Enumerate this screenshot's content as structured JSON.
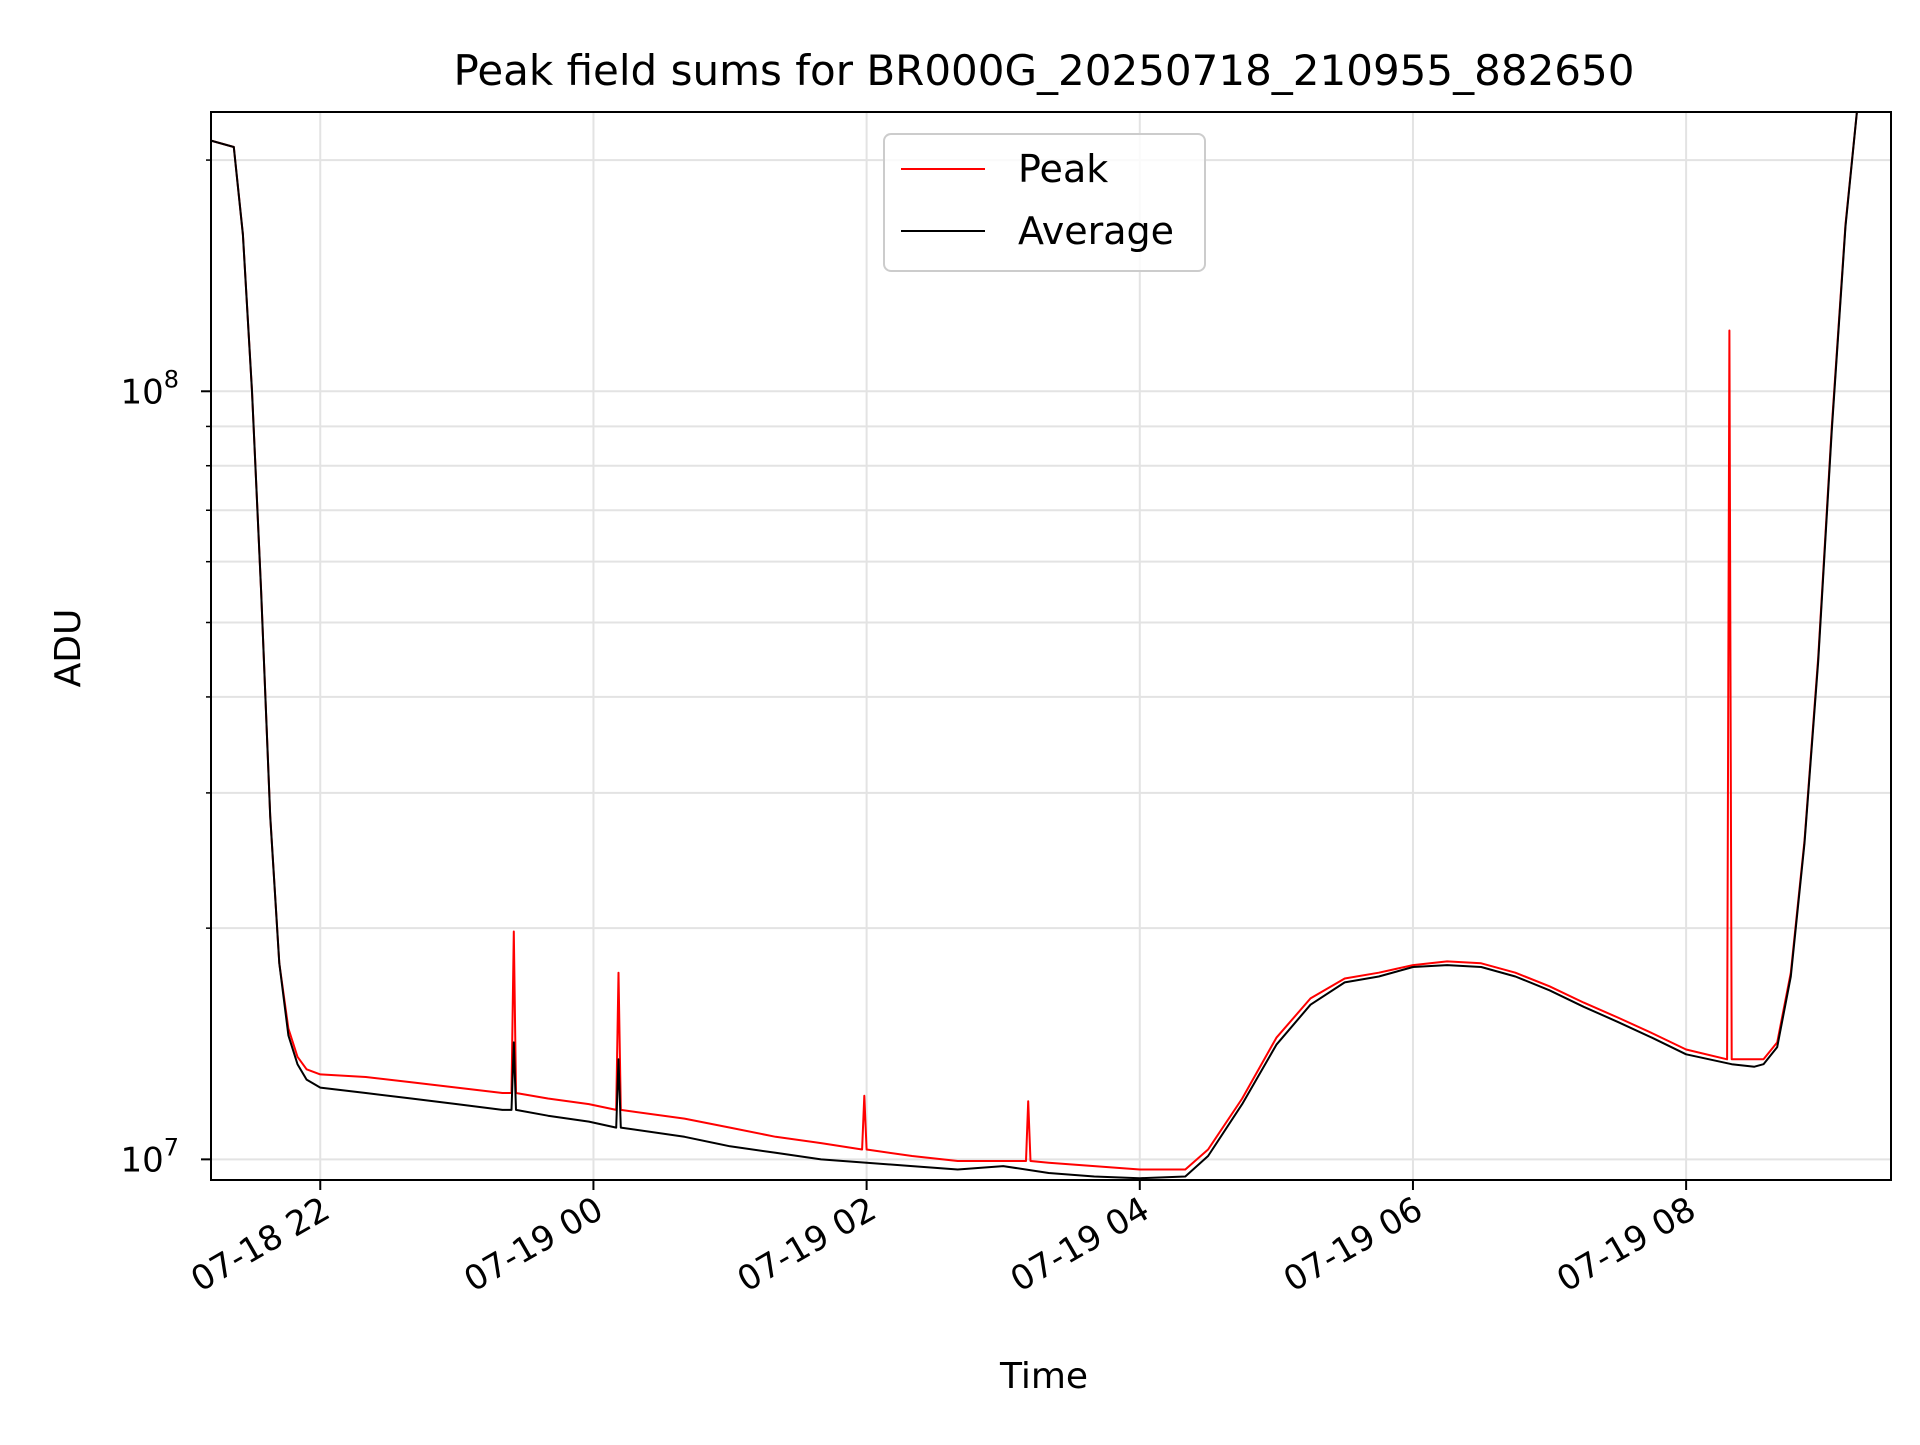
{
  "chart_data": {
    "type": "line",
    "title": "Peak field sums for BR000G_20250718_210955_882650",
    "xlabel": "Time",
    "ylabel": "ADU",
    "y_scale": "log",
    "ylim": [
      9400000,
      231000000
    ],
    "xlim": [
      "2025-07-18 21:12",
      "2025-07-19 09:30"
    ],
    "grid": true,
    "legend_position": "top-center",
    "x_ticks": [
      {
        "t": "2025-07-18 22:00",
        "label": "07-18 22"
      },
      {
        "t": "2025-07-19 00:00",
        "label": "07-19 00"
      },
      {
        "t": "2025-07-19 02:00",
        "label": "07-19 02"
      },
      {
        "t": "2025-07-19 04:00",
        "label": "07-19 04"
      },
      {
        "t": "2025-07-19 06:00",
        "label": "07-19 06"
      },
      {
        "t": "2025-07-19 08:00",
        "label": "07-19 08"
      }
    ],
    "y_ticks": [
      {
        "value": 10000000,
        "base": "10",
        "exp": "7"
      },
      {
        "value": 100000000,
        "base": "10",
        "exp": "8"
      }
    ],
    "series": [
      {
        "name": "Peak",
        "color": "#ff0000",
        "x": [
          "2025-07-18 21:12",
          "2025-07-18 21:22",
          "2025-07-18 21:26",
          "2025-07-18 21:30",
          "2025-07-18 21:34",
          "2025-07-18 21:38",
          "2025-07-18 21:42",
          "2025-07-18 21:46",
          "2025-07-18 21:50",
          "2025-07-18 21:54",
          "2025-07-18 22:00",
          "2025-07-18 22:20",
          "2025-07-18 22:40",
          "2025-07-18 23:00",
          "2025-07-18 23:20",
          "2025-07-18 23:24",
          "2025-07-18 23:25",
          "2025-07-18 23:26",
          "2025-07-18 23:40",
          "2025-07-18 23:58",
          "2025-07-19 00:10",
          "2025-07-19 00:11",
          "2025-07-19 00:12",
          "2025-07-19 00:40",
          "2025-07-19 01:00",
          "2025-07-19 01:20",
          "2025-07-19 01:40",
          "2025-07-19 01:58",
          "2025-07-19 01:59",
          "2025-07-19 02:00",
          "2025-07-19 02:20",
          "2025-07-19 02:40",
          "2025-07-19 03:00",
          "2025-07-19 03:10",
          "2025-07-19 03:11",
          "2025-07-19 03:12",
          "2025-07-19 03:20",
          "2025-07-19 03:40",
          "2025-07-19 04:00",
          "2025-07-19 04:20",
          "2025-07-19 04:30",
          "2025-07-19 04:45",
          "2025-07-19 05:00",
          "2025-07-19 05:15",
          "2025-07-19 05:30",
          "2025-07-19 05:45",
          "2025-07-19 06:00",
          "2025-07-19 06:15",
          "2025-07-19 06:30",
          "2025-07-19 06:45",
          "2025-07-19 07:00",
          "2025-07-19 07:15",
          "2025-07-19 07:30",
          "2025-07-19 07:45",
          "2025-07-19 08:00",
          "2025-07-19 08:18",
          "2025-07-19 08:19",
          "2025-07-19 08:20",
          "2025-07-19 08:30",
          "2025-07-19 08:34",
          "2025-07-19 08:40",
          "2025-07-19 08:46",
          "2025-07-19 08:52",
          "2025-07-19 08:58",
          "2025-07-19 09:04",
          "2025-07-19 09:10",
          "2025-07-19 09:15"
        ],
        "y": [
          212000000,
          208000000,
          160000000,
          100000000,
          55000000,
          28000000,
          18000000,
          14800000,
          13600000,
          13100000,
          12900000,
          12800000,
          12600000,
          12400000,
          12200000,
          12200000,
          19800000,
          12200000,
          12000000,
          11800000,
          11600000,
          17500000,
          11600000,
          11300000,
          11000000,
          10700000,
          10500000,
          10300000,
          12100000,
          10300000,
          10100000,
          9950000,
          9950000,
          9950000,
          11900000,
          9950000,
          9900000,
          9800000,
          9700000,
          9700000,
          10300000,
          12000000,
          14400000,
          16200000,
          17200000,
          17500000,
          17900000,
          18100000,
          18000000,
          17500000,
          16800000,
          16000000,
          15300000,
          14600000,
          13900000,
          13500000,
          120000000,
          13500000,
          13500000,
          13500000,
          14200000,
          17500000,
          26000000,
          45000000,
          90000000,
          165000000,
          231000000
        ]
      },
      {
        "name": "Average",
        "color": "#000000",
        "x": [
          "2025-07-18 21:12",
          "2025-07-18 21:22",
          "2025-07-18 21:26",
          "2025-07-18 21:30",
          "2025-07-18 21:34",
          "2025-07-18 21:38",
          "2025-07-18 21:42",
          "2025-07-18 21:46",
          "2025-07-18 21:50",
          "2025-07-18 21:54",
          "2025-07-18 22:00",
          "2025-07-18 22:20",
          "2025-07-18 22:40",
          "2025-07-18 23:00",
          "2025-07-18 23:20",
          "2025-07-18 23:24",
          "2025-07-18 23:25",
          "2025-07-18 23:26",
          "2025-07-18 23:40",
          "2025-07-18 23:58",
          "2025-07-19 00:10",
          "2025-07-19 00:11",
          "2025-07-19 00:12",
          "2025-07-19 00:40",
          "2025-07-19 01:00",
          "2025-07-19 01:20",
          "2025-07-19 01:40",
          "2025-07-19 02:00",
          "2025-07-19 02:20",
          "2025-07-19 02:40",
          "2025-07-19 03:00",
          "2025-07-19 03:20",
          "2025-07-19 03:40",
          "2025-07-19 04:00",
          "2025-07-19 04:20",
          "2025-07-19 04:30",
          "2025-07-19 04:45",
          "2025-07-19 05:00",
          "2025-07-19 05:15",
          "2025-07-19 05:30",
          "2025-07-19 05:45",
          "2025-07-19 06:00",
          "2025-07-19 06:15",
          "2025-07-19 06:30",
          "2025-07-19 06:45",
          "2025-07-19 07:00",
          "2025-07-19 07:15",
          "2025-07-19 07:30",
          "2025-07-19 07:45",
          "2025-07-19 08:00",
          "2025-07-19 08:20",
          "2025-07-19 08:30",
          "2025-07-19 08:34",
          "2025-07-19 08:40",
          "2025-07-19 08:46",
          "2025-07-19 08:52",
          "2025-07-19 08:58",
          "2025-07-19 09:04",
          "2025-07-19 09:10",
          "2025-07-19 09:15"
        ],
        "y": [
          212000000,
          208000000,
          160000000,
          100000000,
          55000000,
          28000000,
          18000000,
          14500000,
          13300000,
          12700000,
          12400000,
          12200000,
          12000000,
          11800000,
          11600000,
          11600000,
          14200000,
          11600000,
          11400000,
          11200000,
          11000000,
          13500000,
          11000000,
          10700000,
          10400000,
          10200000,
          10000000,
          9900000,
          9800000,
          9700000,
          9800000,
          9600000,
          9500000,
          9450000,
          9500000,
          10100000,
          11800000,
          14100000,
          15900000,
          17000000,
          17300000,
          17800000,
          17900000,
          17800000,
          17300000,
          16600000,
          15800000,
          15100000,
          14400000,
          13700000,
          13300000,
          13200000,
          13300000,
          14000000,
          17300000,
          25800000,
          44500000,
          89000000,
          164000000,
          231000000
        ]
      }
    ]
  }
}
